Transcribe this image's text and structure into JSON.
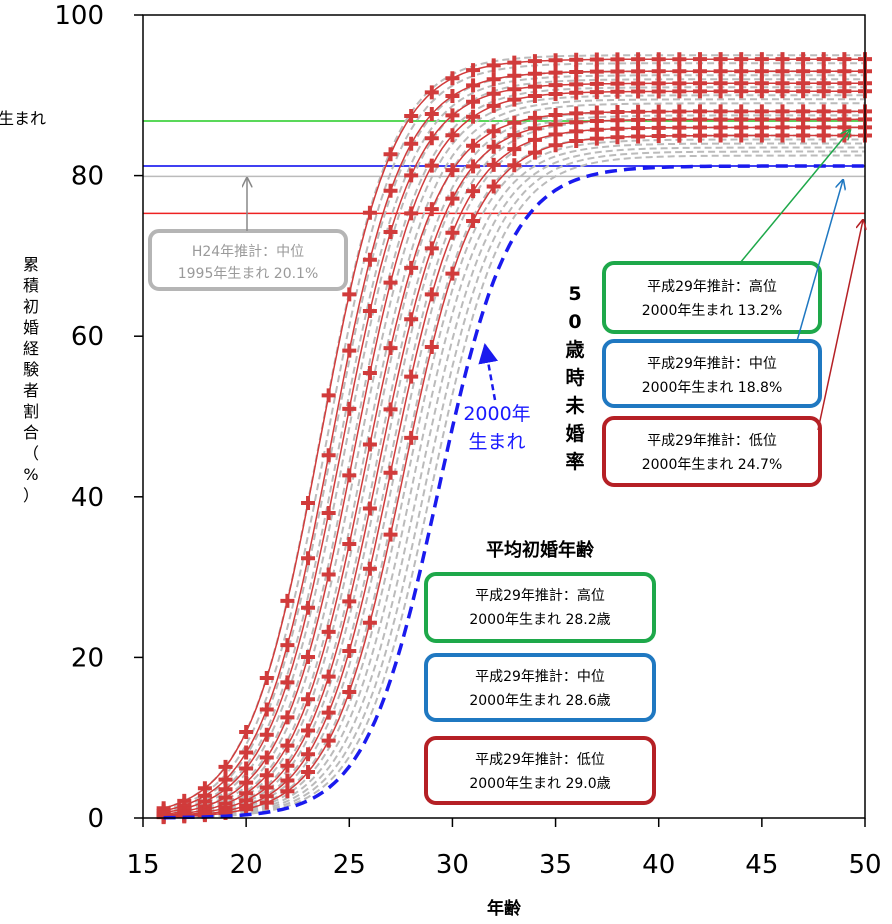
{
  "chart_data": {
    "type": "line",
    "title": "",
    "xlabel": "年齢",
    "ylabel": "累積初婚経験者割合（%）",
    "xlim": [
      15,
      50
    ],
    "ylim": [
      0,
      100
    ],
    "xticks": [
      "15",
      "20",
      "25",
      "30",
      "35",
      "40",
      "45",
      "50"
    ],
    "yticks": [
      "0",
      "20",
      "40",
      "60",
      "80",
      "100"
    ],
    "grid": false,
    "cohort_curves": {
      "description_color": "#bbbbbb",
      "midpoints": [
        23.6,
        23.9,
        24.2,
        24.5,
        24.8,
        25.1,
        25.4,
        25.7,
        26.0,
        26.3,
        26.6,
        26.9,
        27.2,
        27.5,
        27.8,
        28.1,
        28.4,
        28.7,
        29.0
      ],
      "finals": [
        95,
        94,
        93,
        92.5,
        92,
        91,
        90,
        89.5,
        89,
        88,
        87.5,
        87,
        86,
        85,
        84.5,
        84,
        83.5,
        83,
        82.5
      ]
    },
    "marked_series": [
      {
        "midpoint": 23.6,
        "final": 94.5
      },
      {
        "midpoint": 24.1,
        "final": 93
      },
      {
        "midpoint": 24.6,
        "final": 91.5
      },
      {
        "midpoint": 25.2,
        "final": 90.5
      },
      {
        "midpoint": 25.8,
        "final": 88
      },
      {
        "midpoint": 26.4,
        "final": 87
      },
      {
        "midpoint": 27.0,
        "final": 86
      },
      {
        "midpoint": 27.6,
        "final": 85
      }
    ],
    "highlight_series": {
      "name": "2000年生まれ",
      "midpoint": 29.3,
      "final": 81.2,
      "color": "#1a1aee"
    },
    "reference_lines": [
      {
        "y": 86.8,
        "color": "#22cc22"
      },
      {
        "y": 81.2,
        "color": "#0000ee"
      },
      {
        "y": 79.9,
        "color": "#bbbbbb"
      },
      {
        "y": 75.3,
        "color": "#ee2222"
      }
    ],
    "colors": {
      "curve": "#bbbbbb",
      "marker": "#d13b3b",
      "green": "#1ea84a",
      "blue": "#1f78c1",
      "red": "#b52025",
      "gray": "#b5b5b5"
    }
  },
  "annotations": {
    "left_edge_label": "生まれ",
    "h24_line1": "H24年推計：中位",
    "h24_line2": "1995年生まれ 20.1%",
    "label_2000_line1": "2000年",
    "label_2000_line2": "生まれ",
    "vertical_label": "50歳時未婚率",
    "heading_mean_age": "平均初婚年齢",
    "unmarried": [
      {
        "line1": "平成29年推計：高位",
        "line2": "2000年生まれ 13.2%"
      },
      {
        "line1": "平成29年推計：中位",
        "line2": "2000年生まれ 18.8%"
      },
      {
        "line1": "平成29年推計：低位",
        "line2": "2000年生まれ 24.7%"
      }
    ],
    "mean_age": [
      {
        "line1": "平成29年推計：高位",
        "line2": "2000年生まれ 28.2歳"
      },
      {
        "line1": "平成29年推計：中位",
        "line2": "2000年生まれ 28.6歳"
      },
      {
        "line1": "平成29年推計：低位",
        "line2": "2000年生まれ 29.0歳"
      }
    ]
  }
}
